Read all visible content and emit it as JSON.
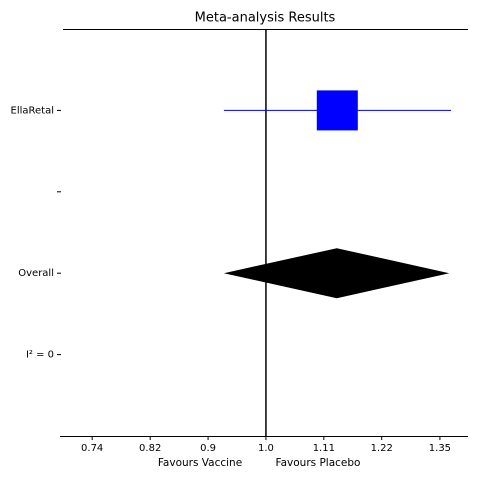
{
  "chart_data": {
    "type": "forest",
    "title": "Meta-analysis Results",
    "x_log": true,
    "xlim": [
      0.701,
      1.417
    ],
    "xticks": [
      {
        "value": 0.741,
        "label": "0.74"
      },
      {
        "value": 0.819,
        "label": "0.82"
      },
      {
        "value": 0.905,
        "label": "0.9"
      },
      {
        "value": 1.0,
        "label": "1.0"
      },
      {
        "value": 1.105,
        "label": "1.11"
      },
      {
        "value": 1.221,
        "label": "1.22"
      },
      {
        "value": 1.35,
        "label": "1.35"
      }
    ],
    "categories": [
      "EllaRetal",
      null,
      "Overall",
      "I² = 0"
    ],
    "reference_line": 1.0,
    "xlabel_left": "Favours Vaccine",
    "xlabel_right": "Favours Placebo",
    "studies": [
      {
        "estimate": 1.13,
        "ci_low": 0.93,
        "ci_high": 1.376,
        "color": "#0000ff"
      }
    ],
    "overall": {
      "estimate": 1.13,
      "ci_low": 0.93,
      "ci_high": 1.372,
      "color": "#000000"
    }
  }
}
